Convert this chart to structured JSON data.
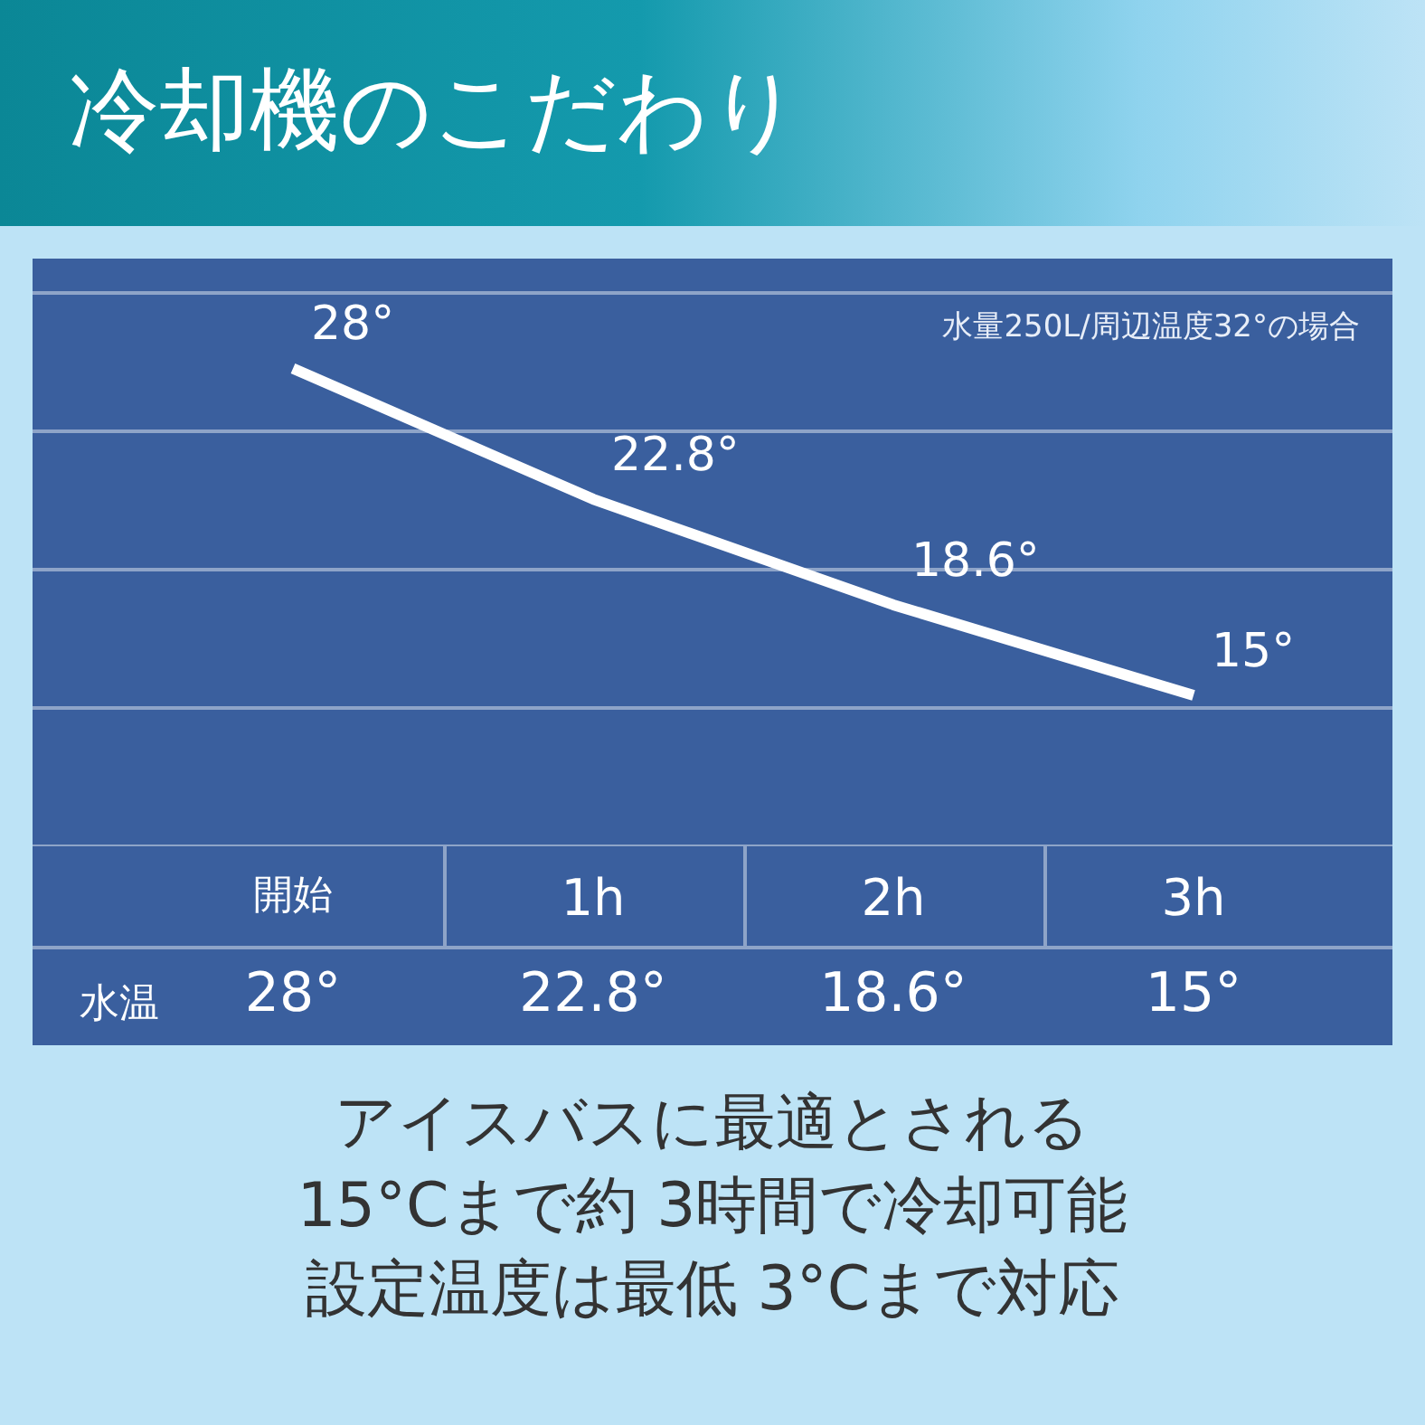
{
  "chart_data": {
    "type": "line",
    "title": "冷却機のこだわり",
    "categories": [
      "開始",
      "1h",
      "2h",
      "3h"
    ],
    "series": [
      {
        "color": "#ffffff",
        "values": [
          28,
          22.8,
          18.6,
          15
        ],
        "value_labels": [
          "28°",
          "22.8°",
          "18.6°",
          "15°"
        ]
      }
    ],
    "ylim": [
      9,
      31
    ],
    "yticks": [
      {
        "value": 9,
        "label": null
      },
      {
        "value": 14.5,
        "label": null
      },
      {
        "value": 20,
        "label": null
      },
      {
        "value": 25.5,
        "label": null
      },
      {
        "value": 31,
        "label": null
      }
    ],
    "grid": "y",
    "marker": "none",
    "line_style": "solid",
    "data_labels": true,
    "annotations": [
      "水量250L/周辺温度32°の場合",
      "水温",
      "アイスバスに最適とされる",
      "15°Cまで約 3時間で冷却可能",
      "設定温度は最低 3°Cまで対応"
    ]
  }
}
